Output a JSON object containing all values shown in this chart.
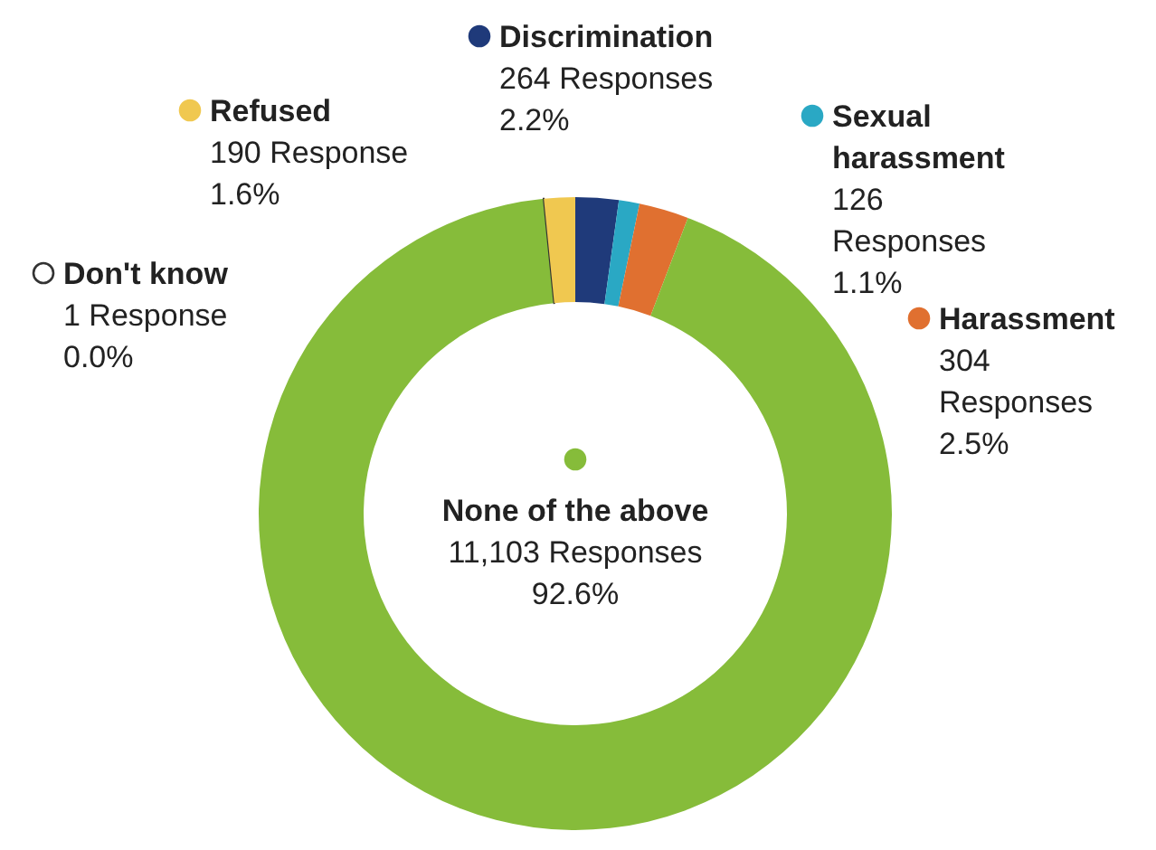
{
  "chart_data": {
    "type": "donut",
    "categories": [
      "Discrimination",
      "Sexual harassment",
      "Harassment",
      "None of the above",
      "Don't know",
      "Refused"
    ],
    "values": [
      264,
      126,
      304,
      11103,
      1,
      190
    ],
    "value_labels": [
      "264 Responses\n2.2%",
      "126 Responses\n1.1%",
      "304 Responses\n2.5%",
      "11,103 Responses\n92.6%",
      "1 Response\n0.0%",
      "190 Response\n1.6%"
    ],
    "colors": [
      "#1f3a7a",
      "#2aa8c4",
      "#e07030",
      "#86bc3a",
      "#ffffff",
      "#f0c850"
    ],
    "legend": "top"
  }
}
